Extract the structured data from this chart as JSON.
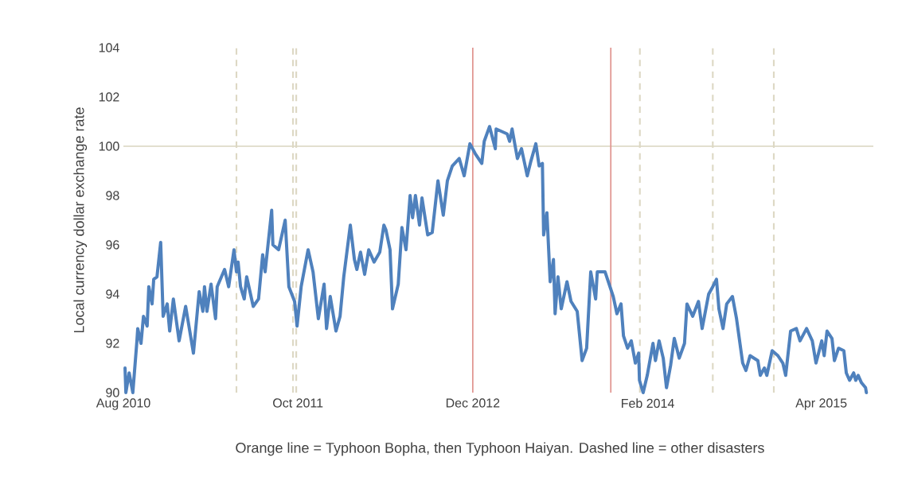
{
  "chart_data": {
    "type": "line",
    "ylabel": "Local currency dollar exchange rate",
    "annotations": [
      "Orange line = Typhoon Bopha, then Typhoon Haiyan. Dashed line = other disasters"
    ],
    "xlim": [
      "2010-08-01",
      "2015-08-06"
    ],
    "xticks": [
      {
        "value": "2010-08-01",
        "label": "Aug 2010"
      },
      {
        "value": "2011-10-01",
        "label": "Oct 2011"
      },
      {
        "value": "2012-12-01",
        "label": "Dec 2012"
      },
      {
        "value": "2014-02-01",
        "label": "Feb 2014"
      },
      {
        "value": "2015-04-01",
        "label": "Apr 2015"
      }
    ],
    "ylim": [
      90,
      104
    ],
    "yticks": [
      90,
      92,
      94,
      96,
      98,
      100,
      102,
      104
    ],
    "ref_lines": [
      {
        "axis": "y",
        "value": 100,
        "color": "#d9d5bf",
        "line_style": "solid"
      },
      {
        "axis": "x",
        "value": "2011-05-04",
        "color": "#ddd8c4",
        "line_style": "dashed"
      },
      {
        "axis": "x",
        "value": "2011-09-19",
        "color": "#ddd8c4",
        "line_style": "dashed"
      },
      {
        "axis": "x",
        "value": "2011-09-27",
        "color": "#ddd8c4",
        "line_style": "dashed"
      },
      {
        "axis": "x",
        "value": "2012-12-01",
        "color": "#e0948f",
        "line_style": "solid"
      },
      {
        "axis": "x",
        "value": "2013-11-03",
        "color": "#e0948f",
        "line_style": "solid"
      },
      {
        "axis": "x",
        "value": "2014-01-13",
        "color": "#ddd8c4",
        "line_style": "dashed"
      },
      {
        "axis": "x",
        "value": "2014-07-10",
        "color": "#ddd8c4",
        "line_style": "dashed"
      },
      {
        "axis": "x",
        "value": "2014-12-06",
        "color": "#ddd8c4",
        "line_style": "dashed"
      }
    ],
    "color": "#4f81bd",
    "x": [
      "2010-08-05",
      "2010-08-07",
      "2010-08-15",
      "2010-08-24",
      "2010-09-03",
      "2010-09-05",
      "2010-09-13",
      "2010-09-19",
      "2010-09-28",
      "2010-10-02",
      "2010-10-10",
      "2010-10-14",
      "2010-10-22",
      "2010-10-31",
      "2010-11-06",
      "2010-11-16",
      "2010-11-22",
      "2010-12-01",
      "2010-12-15",
      "2010-12-31",
      "2011-01-19",
      "2011-02-02",
      "2011-02-11",
      "2011-02-15",
      "2011-02-21",
      "2011-03-03",
      "2011-03-14",
      "2011-03-18",
      "2011-04-05",
      "2011-04-15",
      "2011-04-28",
      "2011-05-04",
      "2011-05-08",
      "2011-05-14",
      "2011-05-23",
      "2011-05-29",
      "2011-06-14",
      "2011-06-27",
      "2011-07-07",
      "2011-07-13",
      "2011-07-29",
      "2011-08-01",
      "2011-08-15",
      "2011-08-31",
      "2011-09-09",
      "2011-09-23",
      "2011-09-29",
      "2011-10-09",
      "2011-10-26",
      "2011-11-07",
      "2011-11-20",
      "2011-12-04",
      "2011-12-10",
      "2011-12-19",
      "2012-01-02",
      "2012-01-12",
      "2012-01-21",
      "2012-02-06",
      "2012-02-16",
      "2012-02-22",
      "2012-03-02",
      "2012-03-12",
      "2012-03-22",
      "2012-04-04",
      "2012-04-18",
      "2012-04-28",
      "2012-05-03",
      "2012-05-13",
      "2012-05-19",
      "2012-06-02",
      "2012-06-11",
      "2012-06-21",
      "2012-07-01",
      "2012-07-07",
      "2012-07-14",
      "2012-07-24",
      "2012-07-30",
      "2012-08-13",
      "2012-08-24",
      "2012-09-07",
      "2012-09-20",
      "2012-09-30",
      "2012-10-12",
      "2012-10-29",
      "2012-11-10",
      "2012-11-24",
      "2012-12-07",
      "2012-12-23",
      "2012-12-29",
      "2013-01-11",
      "2013-01-25",
      "2013-01-27",
      "2013-02-23",
      "2013-03-01",
      "2013-03-07",
      "2013-03-20",
      "2013-03-30",
      "2013-04-13",
      "2013-04-22",
      "2013-05-04",
      "2013-05-12",
      "2013-05-20",
      "2013-05-23",
      "2013-05-31",
      "2013-06-08",
      "2013-06-16",
      "2013-06-20",
      "2013-06-27",
      "2013-07-05",
      "2013-07-19",
      "2013-07-29",
      "2013-08-13",
      "2013-08-25",
      "2013-09-05",
      "2013-09-15",
      "2013-09-27",
      "2013-10-01",
      "2013-10-20",
      "2013-10-30",
      "2013-11-09",
      "2013-11-18",
      "2013-11-28",
      "2013-12-04",
      "2013-12-14",
      "2013-12-23",
      "2014-01-02",
      "2014-01-10",
      "2014-01-12",
      "2014-01-21",
      "2014-01-31",
      "2014-02-14",
      "2014-02-20",
      "2014-03-01",
      "2014-03-11",
      "2014-03-19",
      "2014-03-29",
      "2014-04-07",
      "2014-04-19",
      "2014-05-02",
      "2014-05-08",
      "2014-05-22",
      "2014-06-05",
      "2014-06-14",
      "2014-06-30",
      "2014-07-10",
      "2014-07-19",
      "2014-07-25",
      "2014-08-04",
      "2014-08-13",
      "2014-08-27",
      "2014-09-06",
      "2014-09-21",
      "2014-09-29",
      "2014-10-09",
      "2014-10-28",
      "2014-11-03",
      "2014-11-13",
      "2014-11-19",
      "2014-12-02",
      "2014-12-16",
      "2014-12-28",
      "2015-01-04",
      "2015-01-16",
      "2015-01-30",
      "2015-02-08",
      "2015-02-24",
      "2015-03-10",
      "2015-03-19",
      "2015-04-02",
      "2015-04-08",
      "2015-04-15",
      "2015-04-27",
      "2015-05-03",
      "2015-05-13",
      "2015-05-26",
      "2015-06-01",
      "2015-06-09",
      "2015-06-19",
      "2015-06-24",
      "2015-06-30",
      "2015-07-08",
      "2015-07-18",
      "2015-07-20"
    ],
    "values": [
      91.0,
      90.0,
      90.8,
      90.0,
      92.1,
      92.6,
      92.0,
      93.1,
      92.7,
      94.3,
      93.6,
      94.6,
      94.7,
      96.1,
      93.1,
      93.6,
      92.5,
      93.8,
      92.1,
      93.5,
      91.6,
      94.1,
      93.3,
      94.3,
      93.3,
      94.4,
      93.0,
      94.3,
      95.0,
      94.3,
      95.8,
      94.9,
      95.3,
      94.3,
      93.8,
      94.7,
      93.5,
      93.8,
      95.6,
      94.9,
      97.4,
      96.0,
      95.8,
      97.0,
      94.3,
      93.7,
      92.7,
      94.3,
      95.8,
      94.9,
      93.0,
      94.4,
      92.6,
      93.9,
      92.5,
      93.1,
      94.7,
      96.8,
      95.4,
      95.0,
      95.7,
      94.8,
      95.8,
      95.3,
      95.7,
      96.8,
      96.6,
      95.8,
      93.4,
      94.4,
      96.7,
      95.8,
      98.0,
      97.1,
      98.0,
      96.8,
      97.9,
      96.4,
      96.5,
      98.6,
      97.2,
      98.6,
      99.2,
      99.5,
      98.8,
      100.1,
      99.7,
      99.3,
      100.2,
      100.8,
      99.9,
      100.7,
      100.5,
      100.2,
      100.7,
      99.5,
      99.9,
      98.8,
      99.4,
      100.1,
      99.2,
      99.3,
      96.4,
      97.3,
      94.5,
      95.4,
      93.2,
      94.7,
      93.4,
      94.5,
      93.7,
      93.3,
      91.3,
      91.8,
      94.9,
      93.8,
      94.9,
      94.9,
      94.4,
      93.9,
      93.2,
      93.6,
      92.3,
      91.8,
      92.1,
      91.2,
      91.6,
      90.5,
      90.0,
      90.7,
      92.0,
      91.3,
      92.1,
      91.4,
      90.2,
      91.1,
      92.2,
      91.4,
      92.0,
      93.6,
      93.1,
      93.7,
      92.6,
      94.0,
      94.3,
      94.6,
      93.4,
      92.6,
      93.6,
      93.9,
      93.0,
      91.2,
      90.9,
      91.5,
      91.3,
      90.7,
      91.0,
      90.7,
      91.7,
      91.5,
      91.2,
      90.7,
      92.5,
      92.6,
      92.1,
      92.6,
      92.1,
      91.2,
      92.1,
      91.5,
      92.5,
      92.2,
      91.3,
      91.8,
      91.7,
      90.8,
      90.5,
      90.8,
      90.5,
      90.7,
      90.4,
      90.2,
      90.0
    ]
  }
}
